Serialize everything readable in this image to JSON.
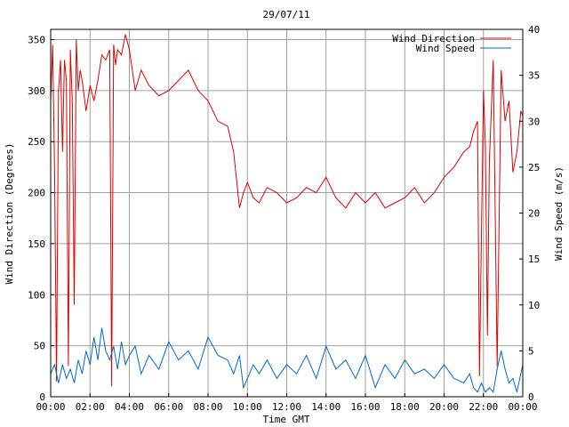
{
  "chart_data": {
    "type": "line",
    "title": "29/07/11",
    "xlabel": "Time GMT",
    "ylabel_left": "Wind Direction (Degrees)",
    "ylabel_right": "Wind Speed (m/s)",
    "x_ticks": [
      "00:00",
      "02:00",
      "04:00",
      "06:00",
      "08:00",
      "10:00",
      "12:00",
      "14:00",
      "16:00",
      "18:00",
      "20:00",
      "22:00",
      "00:00"
    ],
    "xlim": [
      0,
      24
    ],
    "ylim_left": [
      0,
      360
    ],
    "ylim_right": [
      0,
      40
    ],
    "y_ticks_left": [
      0,
      50,
      100,
      150,
      200,
      250,
      300,
      350
    ],
    "y_ticks_right": [
      0,
      5,
      10,
      15,
      20,
      25,
      30,
      35,
      40
    ],
    "grid": true,
    "legend_position": "top-right",
    "colors": {
      "wind_direction": "#e00000",
      "wind_speed": "#0068d0",
      "grid": "#a0a0a0"
    },
    "series": [
      {
        "name": "Wind Direction",
        "axis": "left",
        "x": [
          0,
          0.1,
          0.2,
          0.3,
          0.4,
          0.5,
          0.6,
          0.7,
          0.8,
          0.9,
          1.0,
          1.1,
          1.2,
          1.3,
          1.4,
          1.5,
          1.6,
          1.7,
          1.8,
          2.0,
          2.2,
          2.4,
          2.6,
          2.8,
          3.0,
          3.1,
          3.2,
          3.3,
          3.4,
          3.6,
          3.8,
          4.0,
          4.3,
          4.6,
          5.0,
          5.5,
          6.0,
          6.5,
          7.0,
          7.5,
          8.0,
          8.5,
          9.0,
          9.3,
          9.6,
          9.8,
          10.0,
          10.3,
          10.6,
          11.0,
          11.5,
          12.0,
          12.5,
          13.0,
          13.5,
          14.0,
          14.5,
          15.0,
          15.5,
          16.0,
          16.5,
          17.0,
          17.5,
          18.0,
          18.5,
          19.0,
          19.5,
          20.0,
          20.5,
          21.0,
          21.3,
          21.5,
          21.7,
          21.8,
          22.0,
          22.1,
          22.2,
          22.3,
          22.5,
          22.7,
          22.9,
          23.1,
          23.3,
          23.5,
          23.7,
          23.9,
          24.0
        ],
        "values": [
          290,
          345,
          220,
          15,
          300,
          330,
          240,
          330,
          310,
          30,
          340,
          290,
          90,
          350,
          300,
          320,
          310,
          295,
          280,
          305,
          290,
          310,
          335,
          330,
          340,
          10,
          345,
          325,
          340,
          335,
          355,
          340,
          300,
          320,
          305,
          295,
          300,
          310,
          320,
          300,
          290,
          270,
          265,
          240,
          185,
          200,
          210,
          195,
          190,
          205,
          200,
          190,
          195,
          205,
          200,
          215,
          195,
          185,
          200,
          190,
          200,
          185,
          190,
          195,
          205,
          190,
          200,
          215,
          225,
          240,
          245,
          260,
          270,
          20,
          300,
          245,
          60,
          230,
          330,
          30,
          320,
          270,
          290,
          220,
          240,
          280,
          275
        ]
      },
      {
        "name": "Wind Speed",
        "axis": "right",
        "x": [
          0,
          0.2,
          0.4,
          0.6,
          0.8,
          1.0,
          1.2,
          1.4,
          1.6,
          1.8,
          2.0,
          2.2,
          2.4,
          2.6,
          2.8,
          3.0,
          3.2,
          3.4,
          3.6,
          3.8,
          4.0,
          4.3,
          4.6,
          5.0,
          5.5,
          6.0,
          6.5,
          7.0,
          7.5,
          8.0,
          8.5,
          9.0,
          9.3,
          9.6,
          9.8,
          10.0,
          10.3,
          10.6,
          11.0,
          11.5,
          12.0,
          12.5,
          13.0,
          13.5,
          14.0,
          14.5,
          15.0,
          15.5,
          16.0,
          16.5,
          17.0,
          17.5,
          18.0,
          18.5,
          19.0,
          19.5,
          20.0,
          20.5,
          21.0,
          21.3,
          21.5,
          21.7,
          21.9,
          22.1,
          22.3,
          22.5,
          22.7,
          22.9,
          23.1,
          23.3,
          23.5,
          23.7,
          23.9,
          24.0
        ],
        "values": [
          2.5,
          3.5,
          1.5,
          3.5,
          2.0,
          3.0,
          1.5,
          4.0,
          2.5,
          5.0,
          3.5,
          6.5,
          4.0,
          7.5,
          5.0,
          4.0,
          5.5,
          3.0,
          6.0,
          3.5,
          4.5,
          5.5,
          2.5,
          4.5,
          3.0,
          6.0,
          4.0,
          5.0,
          3.0,
          6.5,
          4.5,
          4.0,
          2.5,
          4.5,
          1.0,
          2.0,
          3.5,
          2.5,
          4.0,
          2.0,
          3.5,
          2.5,
          4.5,
          2.0,
          5.5,
          3.0,
          4.0,
          2.0,
          4.5,
          1.0,
          3.5,
          2.0,
          4.0,
          2.5,
          3.0,
          2.0,
          3.5,
          2.0,
          1.5,
          2.5,
          1.0,
          0.5,
          1.5,
          0.5,
          1.0,
          0.5,
          3.0,
          5.0,
          3.0,
          1.5,
          2.0,
          0.5,
          2.5,
          3.5
        ]
      }
    ]
  }
}
